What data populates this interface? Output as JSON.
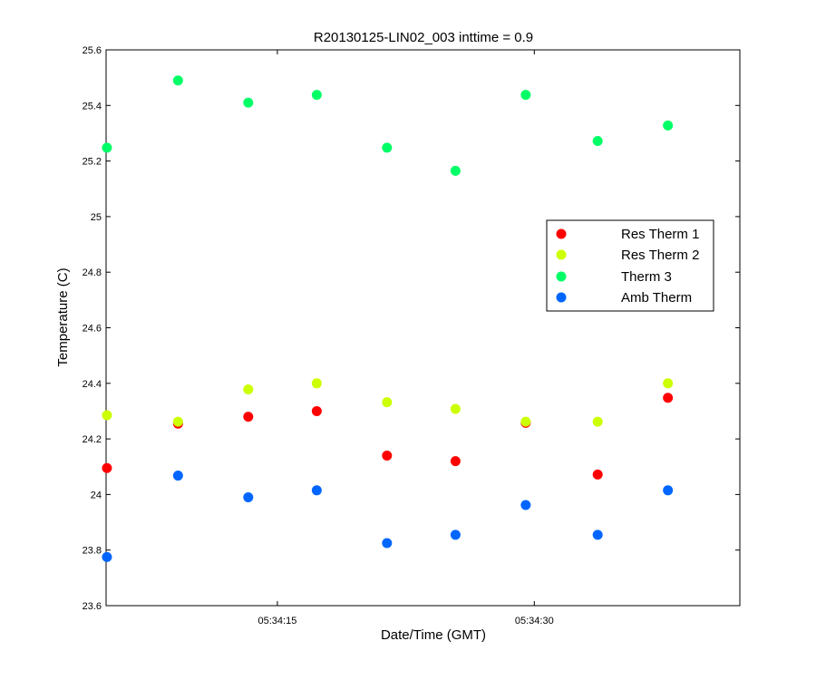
{
  "chart_data": {
    "type": "scatter",
    "title": "R20130125-LIN02_003 inttime = 0.9",
    "xlabel": "Date/Time (GMT)",
    "ylabel": "Temperature (C)",
    "x_unit": "seconds past 05:34",
    "xlim": [
      5,
      42
    ],
    "ylim": [
      23.6,
      25.6
    ],
    "x_ticks": [
      {
        "value": 15,
        "label": "05:34:15"
      },
      {
        "value": 30,
        "label": "05:34:30"
      }
    ],
    "y_ticks": [
      {
        "value": 23.6,
        "label": "23.6"
      },
      {
        "value": 23.8,
        "label": "23.8"
      },
      {
        "value": 24.0,
        "label": "24"
      },
      {
        "value": 24.2,
        "label": "24.2"
      },
      {
        "value": 24.4,
        "label": "24.4"
      },
      {
        "value": 24.6,
        "label": "24.6"
      },
      {
        "value": 24.8,
        "label": "24.8"
      },
      {
        "value": 25.0,
        "label": "25"
      },
      {
        "value": 25.2,
        "label": "25.2"
      },
      {
        "value": 25.4,
        "label": "25.4"
      },
      {
        "value": 25.6,
        "label": "25.6"
      }
    ],
    "grid": false,
    "legend_position": "right",
    "x": [
      5.05,
      9.2,
      13.3,
      17.3,
      21.4,
      25.4,
      29.5,
      33.7,
      37.8
    ],
    "series": [
      {
        "name": "Res Therm 1",
        "color": "#ff0000",
        "values": [
          24.095,
          24.255,
          24.28,
          24.3,
          24.14,
          24.12,
          24.258,
          24.072,
          24.348
        ]
      },
      {
        "name": "Res Therm 2",
        "color": "#ccff00",
        "values": [
          24.285,
          24.262,
          24.378,
          24.4,
          24.332,
          24.308,
          24.262,
          24.262,
          24.4
        ]
      },
      {
        "name": "Therm 3",
        "color": "#00ff66",
        "values": [
          25.248,
          25.49,
          25.41,
          25.438,
          25.248,
          25.165,
          25.438,
          25.272,
          25.328
        ]
      },
      {
        "name": "Amb Therm",
        "color": "#0066ff",
        "values": [
          23.775,
          24.068,
          23.99,
          24.015,
          23.825,
          23.855,
          23.962,
          23.855,
          24.015
        ]
      }
    ]
  }
}
